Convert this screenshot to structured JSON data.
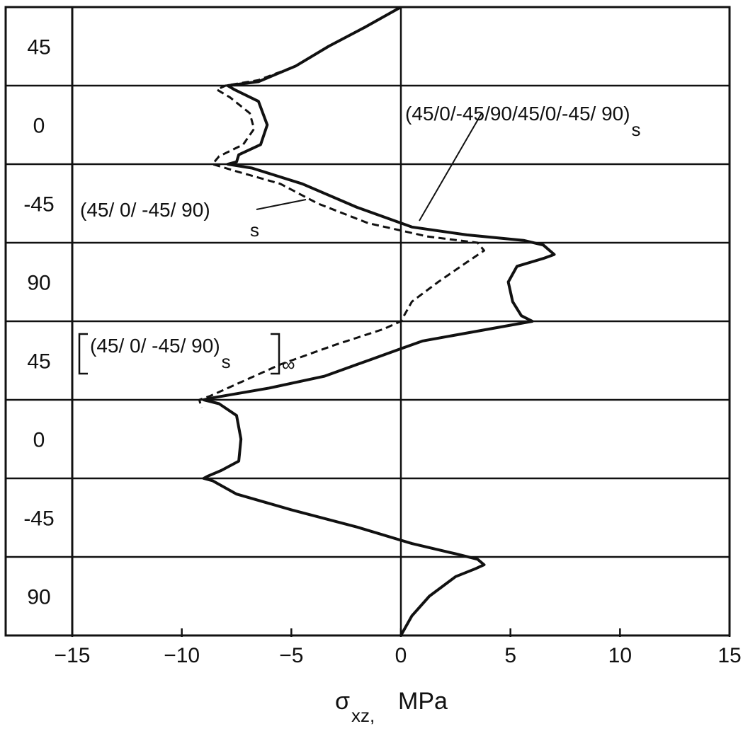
{
  "chart_data": {
    "type": "line",
    "xlabel_main": "σ",
    "xlabel_sub": "xz,",
    "xlabel_unit": "MPa",
    "xlim": [
      -15,
      15
    ],
    "x_ticks": [
      -15,
      -10,
      -5,
      0,
      5,
      10,
      15
    ],
    "x_tick_labels": [
      "−15",
      "−10",
      "−5",
      "0",
      "5",
      "10",
      "15"
    ],
    "ply_labels": [
      "45",
      "0",
      "-45",
      "90",
      "45",
      "0",
      "-45",
      "90"
    ],
    "series": [
      {
        "name": "(45/0/-45/90/45/0/-45/ 90)s",
        "style": "solid",
        "points": [
          [
            0,
            0
          ],
          [
            -1.6,
            0.25
          ],
          [
            -3.3,
            0.5
          ],
          [
            -4.8,
            0.75
          ],
          [
            -6.5,
            0.95
          ],
          [
            -7.9,
            1.0
          ],
          [
            -7.6,
            1.05
          ],
          [
            -6.5,
            1.2
          ],
          [
            -6.1,
            1.5
          ],
          [
            -6.4,
            1.75
          ],
          [
            -7.4,
            1.88
          ],
          [
            -7.5,
            1.97
          ],
          [
            -7.9,
            2.0
          ],
          [
            -6.8,
            2.05
          ],
          [
            -4.5,
            2.25
          ],
          [
            -2.0,
            2.55
          ],
          [
            0.5,
            2.8
          ],
          [
            3.0,
            2.9
          ],
          [
            5.6,
            2.97
          ],
          [
            6.5,
            3.03
          ],
          [
            7.0,
            3.15
          ],
          [
            6.5,
            3.2
          ],
          [
            5.3,
            3.3
          ],
          [
            4.9,
            3.5
          ],
          [
            5.1,
            3.75
          ],
          [
            5.5,
            3.93
          ],
          [
            6.0,
            4.0
          ],
          [
            4.0,
            4.1
          ],
          [
            1.0,
            4.25
          ],
          [
            0.0,
            4.35
          ],
          [
            -1.5,
            4.5
          ],
          [
            -3.5,
            4.7
          ],
          [
            -6.0,
            4.85
          ],
          [
            -8.5,
            4.97
          ],
          [
            -9.0,
            5.0
          ],
          [
            -8.3,
            5.05
          ],
          [
            -7.5,
            5.2
          ],
          [
            -7.3,
            5.5
          ],
          [
            -7.4,
            5.78
          ],
          [
            -8.2,
            5.9
          ],
          [
            -8.8,
            5.97
          ],
          [
            -9.0,
            6.0
          ],
          [
            -8.6,
            6.03
          ],
          [
            -7.5,
            6.2
          ],
          [
            -5.0,
            6.4
          ],
          [
            -2.0,
            6.62
          ],
          [
            0.5,
            6.83
          ],
          [
            2.5,
            6.96
          ],
          [
            3.5,
            7.03
          ],
          [
            3.8,
            7.1
          ],
          [
            3.4,
            7.15
          ],
          [
            2.5,
            7.25
          ],
          [
            1.3,
            7.5
          ],
          [
            0.5,
            7.75
          ],
          [
            0.0,
            8.0
          ]
        ]
      },
      {
        "name": "(45/ 0/ -45/ 90)s",
        "style": "dashed",
        "points": [
          [
            0,
            0
          ],
          [
            -1.6,
            0.25
          ],
          [
            -3.3,
            0.5
          ],
          [
            -4.8,
            0.75
          ],
          [
            -6.5,
            0.93
          ],
          [
            -8.0,
            1.0
          ],
          [
            -8.4,
            1.05
          ],
          [
            -7.8,
            1.15
          ],
          [
            -6.9,
            1.35
          ],
          [
            -6.7,
            1.55
          ],
          [
            -7.2,
            1.75
          ],
          [
            -8.3,
            1.9
          ],
          [
            -8.6,
            2.0
          ],
          [
            -7.4,
            2.1
          ],
          [
            -5.5,
            2.25
          ],
          [
            -3.8,
            2.5
          ],
          [
            -1.5,
            2.75
          ],
          [
            1.2,
            2.92
          ],
          [
            3.5,
            3.0
          ],
          [
            3.8,
            3.1
          ],
          [
            3.0,
            3.25
          ],
          [
            1.7,
            3.5
          ],
          [
            0.5,
            3.75
          ],
          [
            0.0,
            4.0
          ],
          [
            -0.8,
            4.1
          ],
          [
            -3.0,
            4.3
          ],
          [
            -5.5,
            4.55
          ],
          [
            -7.5,
            4.8
          ],
          [
            -8.7,
            4.95
          ],
          [
            -9.2,
            5.0
          ],
          [
            -9.1,
            5.1
          ]
        ]
      }
    ],
    "annotations": {
      "series_a_label_main": "(45/0/-45/90/45/0/-45/ 90)",
      "series_a_label_sub": "s",
      "series_b_label_main": "(45/ 0/ -45/ 90)",
      "series_b_label_sub": "s",
      "bracket_label_main": "(45/ 0/ -45/ 90)",
      "bracket_label_sub": "s",
      "bracket_label_suffix": "∞"
    }
  }
}
